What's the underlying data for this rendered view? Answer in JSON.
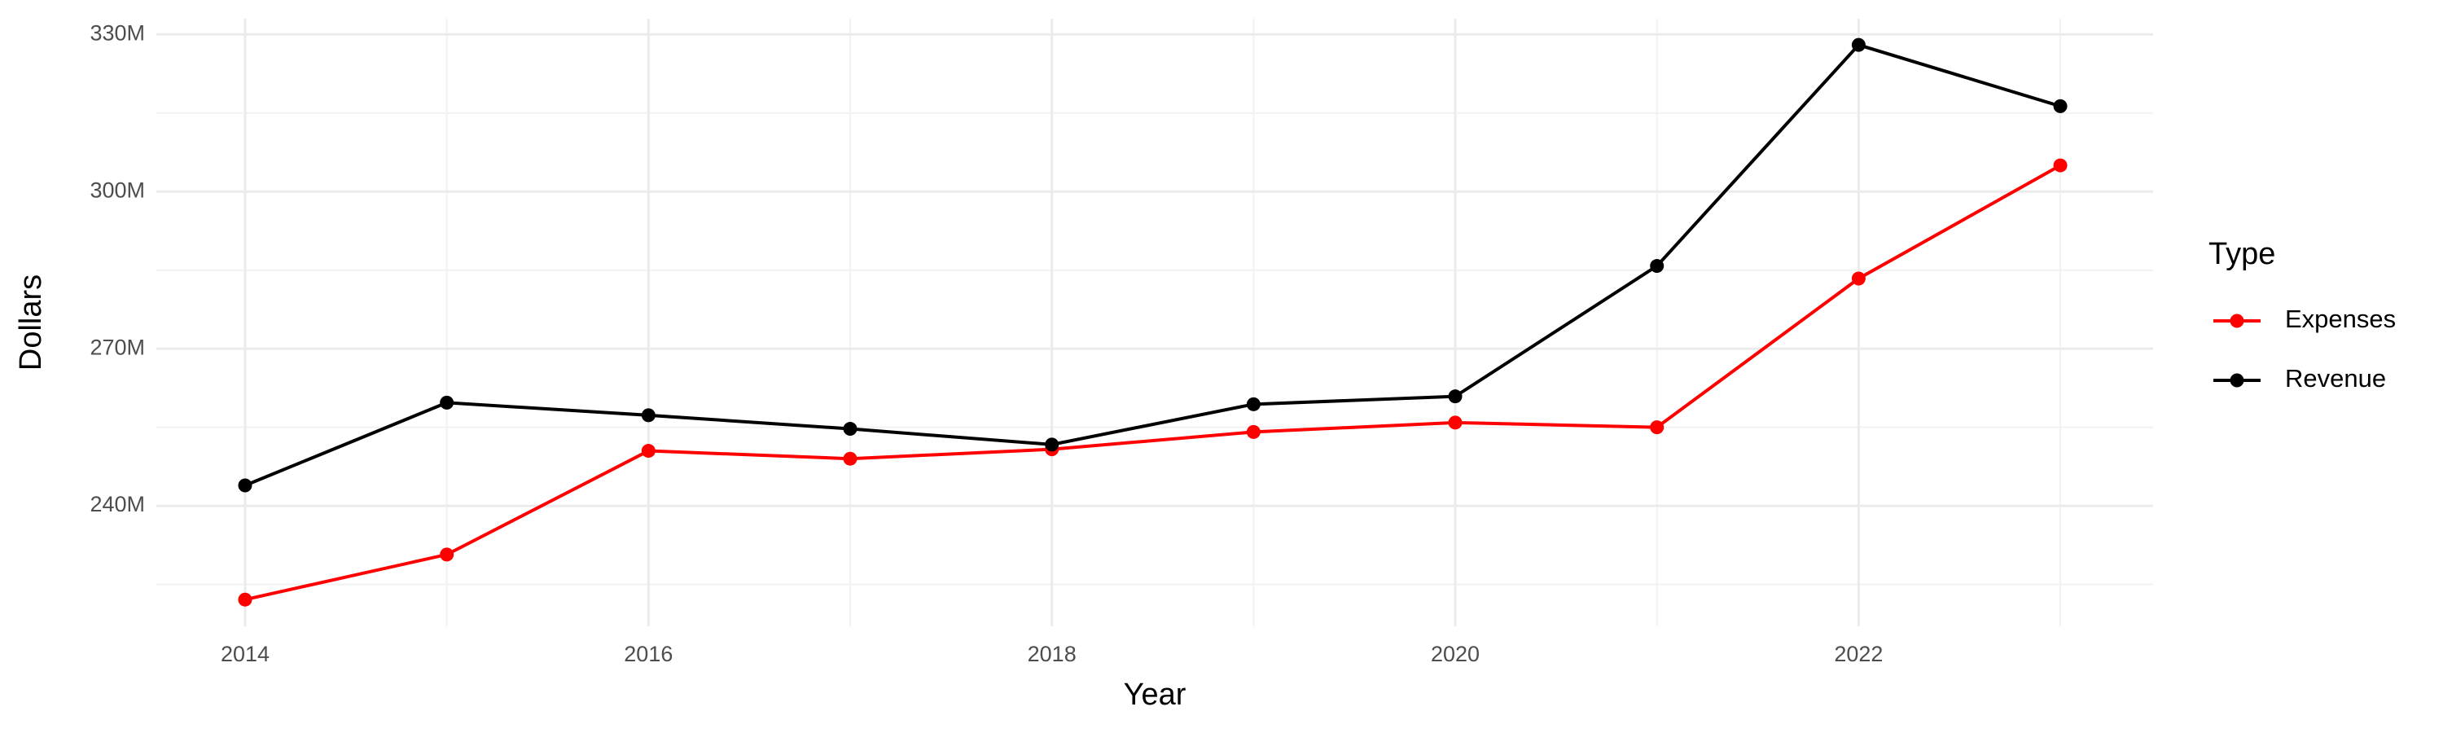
{
  "chart_data": {
    "type": "line",
    "x_label": "Year",
    "y_label": "Dollars",
    "legend_title": "Type",
    "x": [
      2014,
      2015,
      2016,
      2017,
      2018,
      2019,
      2020,
      2021,
      2022,
      2023
    ],
    "series": [
      {
        "name": "Expenses",
        "color": "#ff0000",
        "values": [
          222100000,
          230700000,
          250500000,
          249000000,
          250800000,
          254100000,
          255900000,
          255000000,
          283400000,
          305000000
        ]
      },
      {
        "name": "Revenue",
        "color": "#000000",
        "values": [
          243900000,
          259700000,
          257300000,
          254700000,
          251700000,
          259400000,
          260900000,
          285800000,
          328000000,
          316300000
        ]
      }
    ],
    "xlim": [
      2013.56,
      2023.46
    ],
    "xticks": [
      2014,
      2016,
      2018,
      2020,
      2022
    ],
    "ylim": [
      217000000,
      333000000
    ],
    "yticks": [
      {
        "value": 240000000,
        "label": "240M"
      },
      {
        "value": 270000000,
        "label": "270M"
      },
      {
        "value": 300000000,
        "label": "300M"
      },
      {
        "value": 330000000,
        "label": "330M"
      }
    ],
    "grid": true,
    "legend": "right"
  }
}
